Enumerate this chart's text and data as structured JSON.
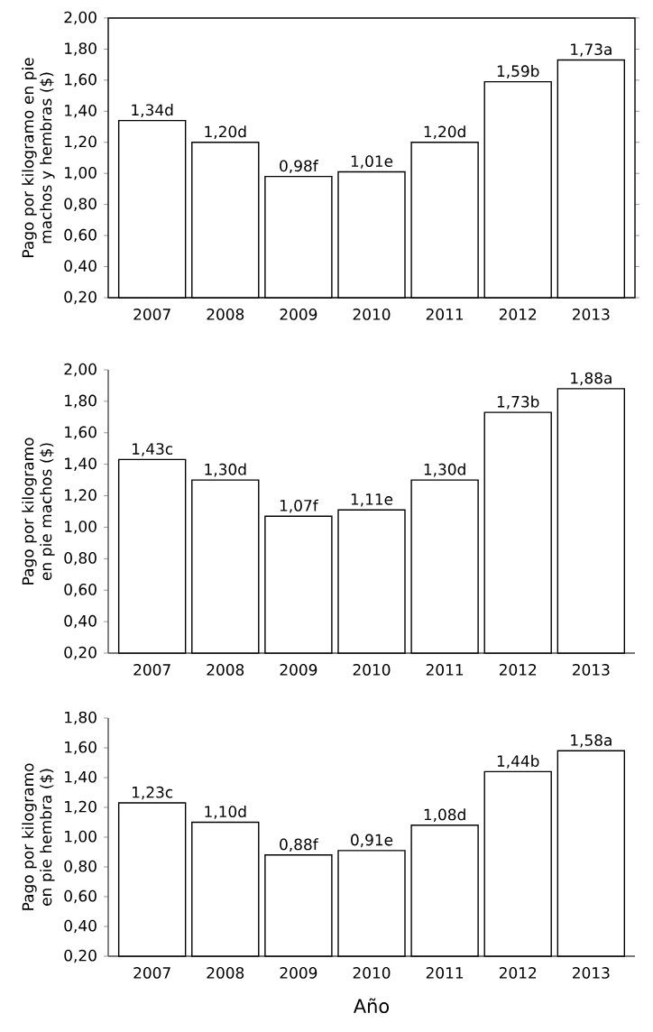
{
  "chart_data": [
    {
      "type": "bar",
      "ylabel": "Pago por kilogramo en pie machos y hembras ($)",
      "categories": [
        "2007",
        "2008",
        "2009",
        "2010",
        "2011",
        "2012",
        "2013"
      ],
      "values": [
        1.34,
        1.2,
        0.98,
        1.01,
        1.2,
        1.59,
        1.73
      ],
      "value_labels": [
        "1,34d",
        "1,20d",
        "0,98f",
        "1,01e",
        "1,20d",
        "1,59b",
        "1,73a"
      ],
      "color": "#ffffff",
      "ylim": [
        0.2,
        2.0
      ],
      "yticks": [
        {
          "value": 0.2,
          "label": "0,20"
        },
        {
          "value": 0.4,
          "label": "0,40"
        },
        {
          "value": 0.6,
          "label": "0,60"
        },
        {
          "value": 0.8,
          "label": "0,80"
        },
        {
          "value": 1.0,
          "label": "1,00"
        },
        {
          "value": 1.2,
          "label": "1,20"
        },
        {
          "value": 1.4,
          "label": "1,40"
        },
        {
          "value": 1.6,
          "label": "1,60"
        },
        {
          "value": 1.8,
          "label": "1,80"
        },
        {
          "value": 2.0,
          "label": "2,00"
        }
      ]
    },
    {
      "type": "bar",
      "ylabel": "Pago por kilogramo en pie machos ($)",
      "categories": [
        "2007",
        "2008",
        "2009",
        "2010",
        "2011",
        "2012",
        "2013"
      ],
      "values": [
        1.43,
        1.3,
        1.07,
        1.11,
        1.3,
        1.73,
        1.88
      ],
      "value_labels": [
        "1,43c",
        "1,30d",
        "1,07f",
        "1,11e",
        "1,30d",
        "1,73b",
        "1,88a"
      ],
      "color": "#ffffff",
      "ylim": [
        0.2,
        2.0
      ],
      "yticks": [
        {
          "value": 0.2,
          "label": "0,20"
        },
        {
          "value": 0.4,
          "label": "0,40"
        },
        {
          "value": 0.6,
          "label": "0,60"
        },
        {
          "value": 0.8,
          "label": "0,80"
        },
        {
          "value": 1.0,
          "label": "1,00"
        },
        {
          "value": 1.2,
          "label": "1,20"
        },
        {
          "value": 1.4,
          "label": "1,40"
        },
        {
          "value": 1.6,
          "label": "1,60"
        },
        {
          "value": 1.8,
          "label": "1,80"
        },
        {
          "value": 2.0,
          "label": "2,00"
        }
      ]
    },
    {
      "type": "bar",
      "ylabel": "Pago por kilogramo en pie hembra ($)",
      "xlabel": "Año",
      "categories": [
        "2007",
        "2008",
        "2009",
        "2010",
        "2011",
        "2012",
        "2013"
      ],
      "values": [
        1.23,
        1.1,
        0.88,
        0.91,
        1.08,
        1.44,
        1.58
      ],
      "value_labels": [
        "1,23c",
        "1,10d",
        "0,88f",
        "0,91e",
        "1,08d",
        "1,44b",
        "1,58a"
      ],
      "color": "#ffffff",
      "ylim": [
        0.2,
        1.8
      ],
      "yticks": [
        {
          "value": 0.2,
          "label": "0,20"
        },
        {
          "value": 0.4,
          "label": "0,40"
        },
        {
          "value": 0.6,
          "label": "0,60"
        },
        {
          "value": 0.8,
          "label": "0,80"
        },
        {
          "value": 1.0,
          "label": "1,00"
        },
        {
          "value": 1.2,
          "label": "1,20"
        },
        {
          "value": 1.4,
          "label": "1,40"
        },
        {
          "value": 1.6,
          "label": "1,60"
        },
        {
          "value": 1.8,
          "label": "1,80"
        }
      ]
    }
  ]
}
